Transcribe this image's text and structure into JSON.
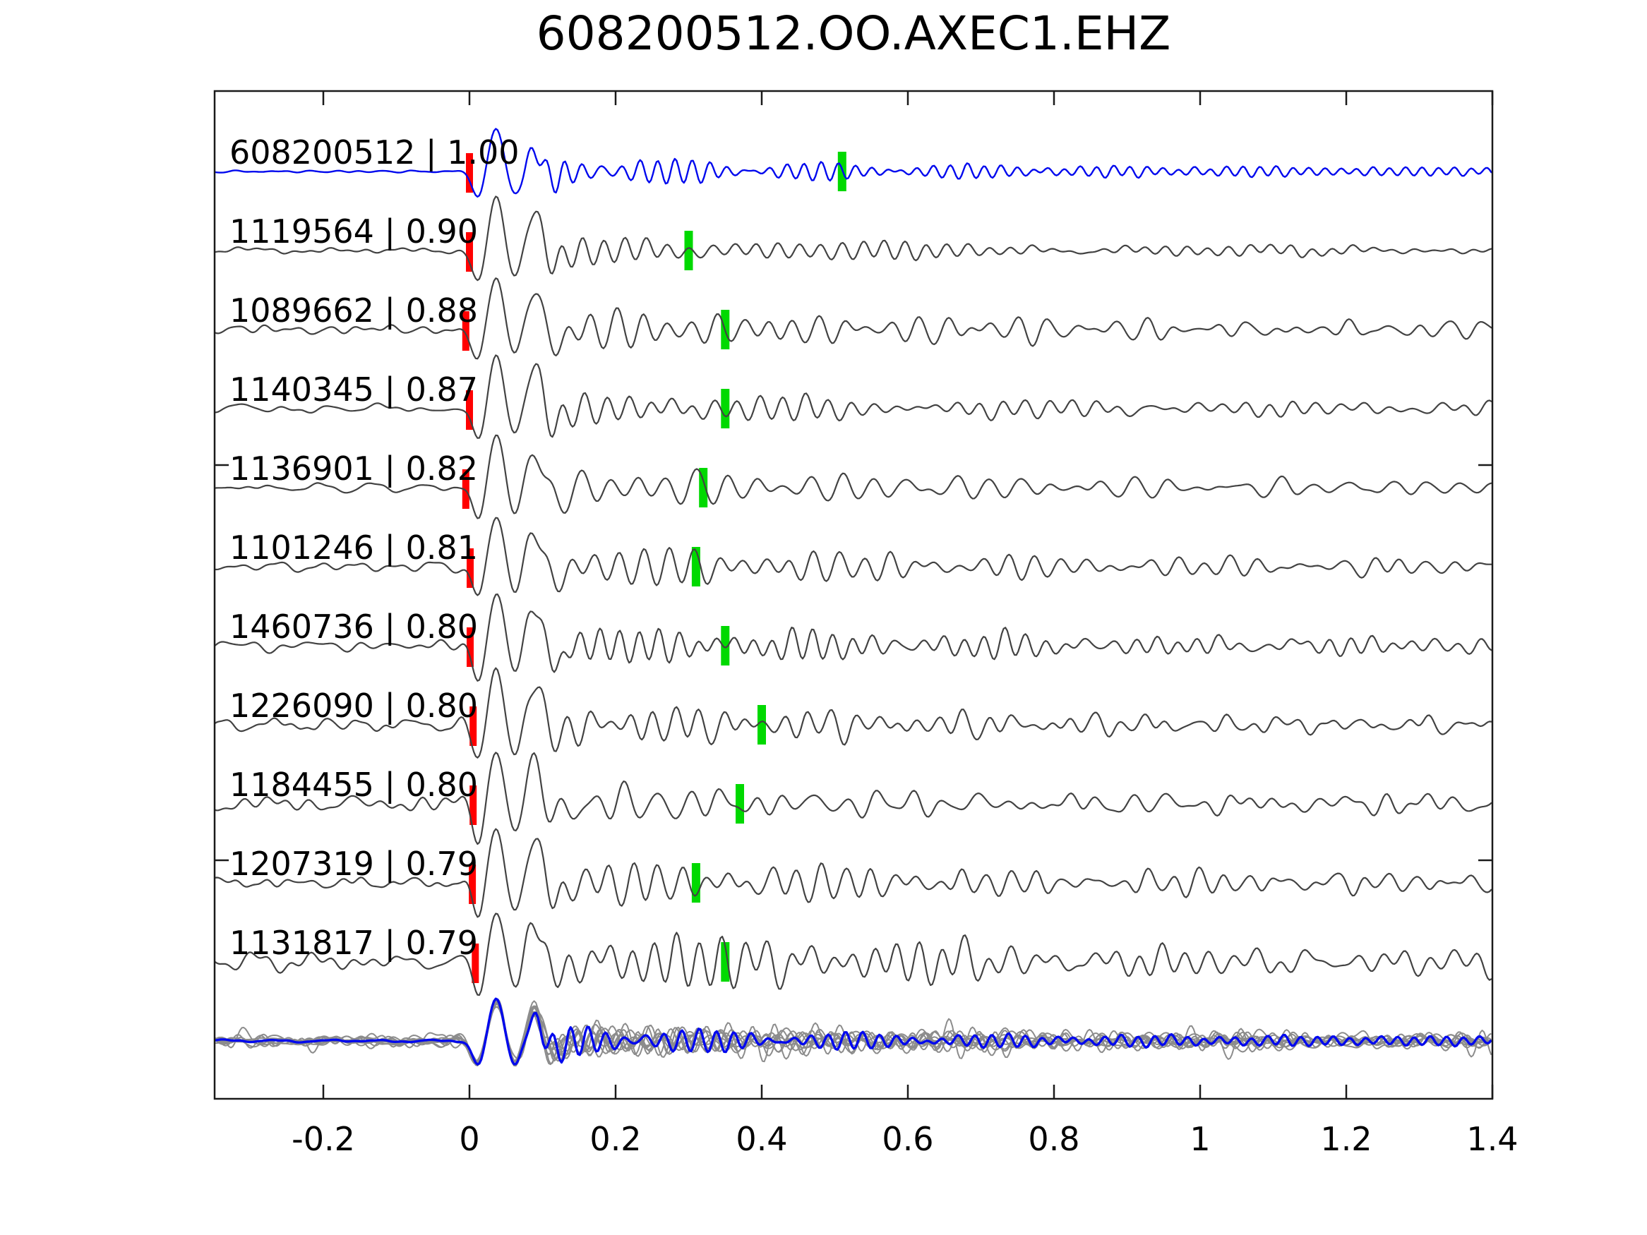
{
  "title": "608200512.OO.AXEC1.EHZ",
  "colors": {
    "template_trace": "#0008ee",
    "detection_trace": "#424242",
    "overlay_trace": "#8c8c8c",
    "overlay_template": "#0008ee",
    "pick_red": "#ff0000",
    "pick_green": "#00d900",
    "spine": "#1a1a1a",
    "text": "#000000",
    "background": "#ffffff"
  },
  "chart_data": {
    "type": "line",
    "title": "608200512.OO.AXEC1.EHZ",
    "xlabel": "",
    "ylabel": "",
    "xlim": [
      -0.349,
      1.4
    ],
    "grid": false,
    "legend": "none",
    "x_ticks": [
      -0.2,
      0,
      0.2,
      0.4,
      0.6,
      0.8,
      1,
      1.2,
      1.4
    ],
    "x_tick_labels": [
      "-0.2",
      "0",
      "0.2",
      "0.4",
      "0.6",
      "0.8",
      "1",
      "1.2",
      "1.4"
    ],
    "description": "Waveform template-matching panel: template trace (blue) plus 10 detected event traces (dark gray), each with a red template-pick bar near t=0 and a green detection-pick bar; bottom row shows all traces overlaid (gray) with the template in blue.",
    "traces": [
      {
        "id": "608200512",
        "cc": "1.00",
        "label": "608200512 | 1.00",
        "role": "template",
        "red_pick_t": 0.0,
        "green_pick_t": 0.51,
        "synth": {
          "seed": 11,
          "amp": 62,
          "pre": 1.6,
          "p2": 0.5,
          "coda": 0.3,
          "fc": 40,
          "rip": 0.13,
          "fr": 45,
          "decay": 2.6
        }
      },
      {
        "id": "1119564",
        "cc": "0.90",
        "label": "1119564 | 0.90",
        "role": "detection",
        "red_pick_t": 0.0,
        "green_pick_t": 0.3,
        "synth": {
          "seed": 12,
          "amp": 76,
          "pre": 3.5,
          "p2": 0.75,
          "coda": 0.26,
          "fc": 34,
          "rip": 0.07,
          "fr": 36,
          "decay": 1.9
        }
      },
      {
        "id": "1089662",
        "cc": "0.88",
        "label": "1089662 | 0.88",
        "role": "detection",
        "red_pick_t": -0.005,
        "green_pick_t": 0.35,
        "synth": {
          "seed": 13,
          "amp": 78,
          "pre": 6.5,
          "p2": 0.78,
          "coda": 0.3,
          "fc": 29,
          "rip": 0.13,
          "fr": 22,
          "decay": 1.6
        }
      },
      {
        "id": "1140345",
        "cc": "0.87",
        "label": "1140345 | 0.87",
        "role": "detection",
        "red_pick_t": 0.0,
        "green_pick_t": 0.35,
        "synth": {
          "seed": 14,
          "amp": 77,
          "pre": 5.0,
          "p2": 0.75,
          "coda": 0.27,
          "fc": 33,
          "rip": 0.09,
          "fr": 30,
          "decay": 1.8
        }
      },
      {
        "id": "1136901",
        "cc": "0.82",
        "label": "1136901 | 0.82",
        "role": "detection",
        "red_pick_t": -0.005,
        "green_pick_t": 0.32,
        "synth": {
          "seed": 15,
          "amp": 79,
          "pre": 4.5,
          "p2": 0.78,
          "coda": 0.28,
          "fc": 25,
          "rip": 0.12,
          "fr": 20,
          "decay": 1.5
        }
      },
      {
        "id": "1101246",
        "cc": "0.81",
        "label": "1101246 | 0.81",
        "role": "detection",
        "red_pick_t": 0.001,
        "green_pick_t": 0.31,
        "synth": {
          "seed": 16,
          "amp": 77,
          "pre": 5.5,
          "p2": 0.76,
          "coda": 0.32,
          "fc": 30,
          "rip": 0.12,
          "fr": 26,
          "decay": 1.5
        }
      },
      {
        "id": "1460736",
        "cc": "0.80",
        "label": "1460736 | 0.80",
        "role": "detection",
        "red_pick_t": 0.001,
        "green_pick_t": 0.35,
        "synth": {
          "seed": 17,
          "amp": 77,
          "pre": 7.0,
          "p2": 0.75,
          "coda": 0.28,
          "fc": 38,
          "rip": 0.12,
          "fr": 34,
          "decay": 1.6
        }
      },
      {
        "id": "1226090",
        "cc": "0.80",
        "label": "1226090 | 0.80",
        "role": "detection",
        "red_pick_t": 0.005,
        "green_pick_t": 0.4,
        "synth": {
          "seed": 18,
          "amp": 79,
          "pre": 8.5,
          "p2": 0.77,
          "coda": 0.26,
          "fc": 33,
          "rip": 0.11,
          "fr": 28,
          "decay": 1.6
        }
      },
      {
        "id": "1184455",
        "cc": "0.80",
        "label": "1184455 | 0.80",
        "role": "detection",
        "red_pick_t": 0.005,
        "green_pick_t": 0.37,
        "synth": {
          "seed": 19,
          "amp": 79,
          "pre": 10.0,
          "p2": 0.78,
          "coda": 0.26,
          "fc": 23,
          "rip": 0.12,
          "fr": 20,
          "decay": 1.5
        }
      },
      {
        "id": "1207319",
        "cc": "0.79",
        "label": "1207319 | 0.79",
        "role": "detection",
        "red_pick_t": 0.004,
        "green_pick_t": 0.31,
        "synth": {
          "seed": 20,
          "amp": 81,
          "pre": 7.5,
          "p2": 0.78,
          "coda": 0.3,
          "fc": 31,
          "rip": 0.13,
          "fr": 27,
          "decay": 1.3
        }
      },
      {
        "id": "1131817",
        "cc": "0.79",
        "label": "1131817 | 0.79",
        "role": "detection",
        "red_pick_t": 0.008,
        "green_pick_t": 0.35,
        "synth": {
          "seed": 21,
          "amp": 83,
          "pre": 13.0,
          "p2": 0.8,
          "coda": 0.32,
          "fc": 33,
          "rip": 0.16,
          "fr": 30,
          "decay": 1.1
        }
      }
    ],
    "overlay": {
      "gray_count": 10,
      "scale": 0.72,
      "seed_offset": 40
    }
  }
}
